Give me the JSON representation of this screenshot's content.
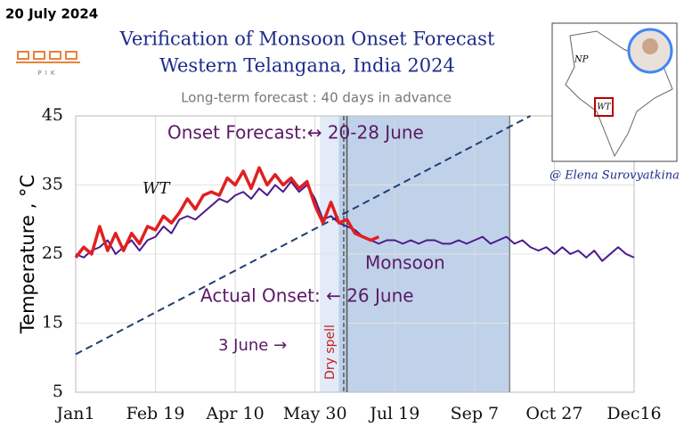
{
  "chart_data": {
    "type": "line",
    "date_stamp": "20 July 2024",
    "title": "Verification of Monsoon Onset Forecast",
    "subtitle": "Western Telangana, India 2024",
    "note": "Long-term forecast : 40 days in advance",
    "ylabel": "Temperature , °C",
    "logo": "PIK",
    "credit": "@ Elena Surovyatkina",
    "map_labels": [
      "NP",
      "WT"
    ],
    "annotations": [
      "Onset Forecast:↔ 20-28 June",
      "Monsoon",
      "Actual Onset: ← 26 June",
      "3 June →",
      "Dry spell"
    ],
    "xlim": [
      0,
      350
    ],
    "xticks": [
      {
        "value": 0,
        "label": "Jan1"
      },
      {
        "value": 50,
        "label": "Feb 19"
      },
      {
        "value": 100,
        "label": "Apr 10"
      },
      {
        "value": 150,
        "label": "May 30"
      },
      {
        "value": 200,
        "label": "Jul 19"
      },
      {
        "value": 250,
        "label": "Sep 7"
      },
      {
        "value": 300,
        "label": "Oct 27"
      },
      {
        "value": 350,
        "label": "Dec16"
      }
    ],
    "ylim": [
      5,
      45
    ],
    "yticks": [
      5,
      15,
      25,
      35,
      45
    ],
    "grid": true,
    "x": [
      0,
      5,
      10,
      15,
      20,
      25,
      30,
      35,
      40,
      45,
      50,
      55,
      60,
      65,
      70,
      75,
      80,
      85,
      90,
      95,
      100,
      105,
      110,
      115,
      120,
      125,
      130,
      135,
      140,
      145,
      150,
      155,
      160,
      165,
      170,
      175,
      180,
      185,
      190,
      195,
      200,
      205,
      210,
      215,
      220,
      225,
      230,
      235,
      240,
      245,
      250,
      255,
      260,
      265,
      270,
      275,
      280,
      285,
      290,
      295,
      300,
      305,
      310,
      315,
      320,
      325,
      330,
      335,
      340,
      345,
      350
    ],
    "series": [
      {
        "name": "WT",
        "color": "#e02020",
        "width": 3.5,
        "values": [
          24.5,
          26,
          25,
          29,
          25.5,
          28,
          25.5,
          28,
          26.5,
          29,
          28.5,
          30.5,
          29.5,
          31,
          33,
          31.5,
          33.5,
          34,
          33.5,
          36,
          35,
          37,
          34.5,
          37.5,
          35,
          36.5,
          35,
          36,
          34.5,
          35.5,
          32,
          29.5,
          32.5,
          29.5,
          30,
          28,
          27.5,
          27,
          27.5,
          null,
          null,
          null,
          null,
          null,
          null,
          null,
          null,
          null,
          null,
          null,
          null,
          null,
          null,
          null,
          null,
          null,
          null,
          null,
          null,
          null,
          null,
          null,
          null,
          null,
          null,
          null,
          null,
          null,
          null,
          null,
          null
        ]
      },
      {
        "color": "#4b1a8c",
        "width": 2,
        "values": [
          25,
          24.5,
          25.5,
          26,
          27,
          25,
          26,
          27,
          25.5,
          27,
          27.5,
          29,
          28,
          30,
          30.5,
          30,
          31,
          32,
          33,
          32.5,
          33.5,
          34,
          33,
          34.5,
          33.5,
          35,
          34,
          35.5,
          34,
          35,
          33,
          30,
          30.5,
          29.5,
          29,
          28.5,
          27.5,
          27,
          26.5,
          27,
          27,
          26.5,
          27,
          26.5,
          27,
          27,
          26.5,
          26.5,
          27,
          26.5,
          27,
          27.5,
          26.5,
          27,
          27.5,
          26.5,
          27,
          26,
          25.5,
          26,
          25,
          26,
          25,
          25.5,
          24.5,
          25.5,
          24,
          25,
          26,
          25,
          24.5
        ]
      }
    ],
    "trend_line": {
      "x": [
        0,
        285
      ],
      "values": [
        10.5,
        45
      ],
      "color": "#1f3f73"
    },
    "bands": [
      {
        "start": 153,
        "end": 170,
        "color": "#dfe9f6"
      },
      {
        "start": 165,
        "end": 272,
        "color": "#b9cde7"
      }
    ],
    "vlines": [
      {
        "x": 168,
        "color": "#555",
        "dash": true
      },
      {
        "x": 170,
        "color": "#555"
      },
      {
        "x": 272,
        "color": "#888"
      }
    ]
  }
}
